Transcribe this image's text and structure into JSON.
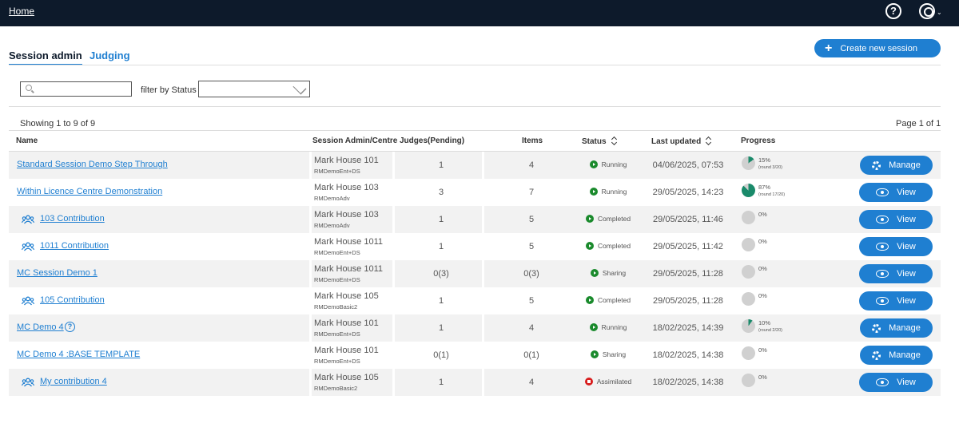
{
  "nav": {
    "home": "Home",
    "help_glyph": "?",
    "user_menu_caret": "⌄"
  },
  "tabs": [
    {
      "label": "Session admin",
      "active": true
    },
    {
      "label": "Judging",
      "active": false
    }
  ],
  "create_button": {
    "label": "Create new session",
    "icon": "plus-icon"
  },
  "filters": {
    "search_placeholder": "",
    "status_label": "filter by Status",
    "status_value": ""
  },
  "showing": "Showing 1 to 9 of 9",
  "pagination": "Page 1  of 1",
  "columns": {
    "name": "Name",
    "admin": "Session Admin/Centre",
    "judges": "Judges(Pending)",
    "items": "Items",
    "status": "Status",
    "updated": "Last updated",
    "progress": "Progress"
  },
  "colors": {
    "accent": "#1f7fd1",
    "topbar": "#0d1a2b",
    "running": "#1a8a2c",
    "assimilated": "#d81e1e",
    "pie_fill": "#1a8a6a",
    "pie_empty": "#d0d0d0"
  },
  "rows": [
    {
      "name": "Standard Session Demo Step Through",
      "child": false,
      "admin": "Mark House 101",
      "centre": "RMDemoEnt+DS",
      "judges": "1",
      "items": "4",
      "status": "Running",
      "status_color": "green",
      "updated": "04/06/2025, 07:53",
      "progress_label": "15%",
      "progress": 0.15,
      "round": "(round 3/20)",
      "action": "Manage"
    },
    {
      "name": "Within Licence Centre Demonstration",
      "child": false,
      "admin": "Mark House 103",
      "centre": "RMDemoAdv",
      "judges": "3",
      "items": "7",
      "status": "Running",
      "status_color": "green",
      "updated": "29/05/2025, 14:23",
      "progress_label": "87%",
      "progress": 0.87,
      "round": "(round 17/20)",
      "action": "View"
    },
    {
      "name": "103 Contribution",
      "child": true,
      "admin": "Mark House 103",
      "centre": "RMDemoAdv",
      "judges": "1",
      "items": "5",
      "status": "Completed",
      "status_color": "green",
      "updated": "29/05/2025, 11:46",
      "progress_label": "0%",
      "progress": 0,
      "round": "",
      "action": "View"
    },
    {
      "name": "1011 Contribution",
      "child": true,
      "admin": "Mark House 1011",
      "centre": "RMDemoEnt+DS",
      "judges": "1",
      "items": "5",
      "status": "Completed",
      "status_color": "green",
      "updated": "29/05/2025, 11:42",
      "progress_label": "0%",
      "progress": 0,
      "round": "",
      "action": "View"
    },
    {
      "name": "MC Session Demo 1",
      "child": false,
      "admin": "Mark House 1011",
      "centre": "RMDemoEnt+DS",
      "judges": "0(3)",
      "items": "0(3)",
      "status": "Sharing",
      "status_color": "green",
      "updated": "29/05/2025, 11:28",
      "progress_label": "0%",
      "progress": 0,
      "round": "",
      "action": "View"
    },
    {
      "name": "105 Contribution",
      "child": true,
      "admin": "Mark House 105",
      "centre": "RMDemoBasic2",
      "judges": "1",
      "items": "5",
      "status": "Completed",
      "status_color": "green",
      "updated": "29/05/2025, 11:28",
      "progress_label": "0%",
      "progress": 0,
      "round": "",
      "action": "View"
    },
    {
      "name": "MC Demo 4",
      "child": false,
      "help": true,
      "admin": "Mark House 101",
      "centre": "RMDemoEnt+DS",
      "judges": "1",
      "items": "4",
      "status": "Running",
      "status_color": "green",
      "updated": "18/02/2025, 14:39",
      "progress_label": "10%",
      "progress": 0.1,
      "round": "(round 2/20)",
      "action": "Manage"
    },
    {
      "name": "MC Demo 4 :BASE TEMPLATE",
      "child": false,
      "admin": "Mark House 101",
      "centre": "RMDemoEnt+DS",
      "judges": "0(1)",
      "items": "0(1)",
      "status": "Sharing",
      "status_color": "green",
      "updated": "18/02/2025, 14:38",
      "progress_label": "0%",
      "progress": 0,
      "round": "",
      "action": "Manage"
    },
    {
      "name": "My contribution 4",
      "child": true,
      "admin": "Mark House 105",
      "centre": "RMDemoBasic2",
      "judges": "1",
      "items": "4",
      "status": "Assimilated",
      "status_color": "red",
      "updated": "18/02/2025, 14:38",
      "progress_label": "0%",
      "progress": 0,
      "round": "",
      "action": "View"
    }
  ]
}
